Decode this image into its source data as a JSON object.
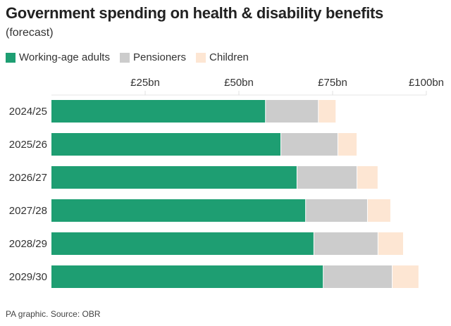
{
  "chart_data": {
    "type": "bar",
    "orientation": "horizontal",
    "stacked": true,
    "title": "Government spending on health & disability benefits",
    "subtitle": "(forecast)",
    "categories": [
      "2024/25",
      "2025/26",
      "2026/27",
      "2027/28",
      "2028/29",
      "2029/30"
    ],
    "series": [
      {
        "name": "Working-age adults",
        "color": "#1e9e72",
        "values": [
          57.0,
          61.1,
          65.4,
          67.7,
          69.9,
          72.4
        ]
      },
      {
        "name": "Pensioners",
        "color": "#cccccc",
        "values": [
          14.1,
          15.2,
          16.0,
          16.5,
          17.1,
          18.4
        ]
      },
      {
        "name": "Children",
        "color": "#fde6d3",
        "values": [
          4.7,
          5.1,
          5.6,
          6.2,
          6.8,
          7.1
        ]
      }
    ],
    "xlim": [
      0,
      100
    ],
    "x_ticks": [
      25,
      50,
      75,
      100
    ],
    "x_tick_labels": [
      "£25bn",
      "£50bn",
      "£75bn",
      "£100bn"
    ],
    "legend_position": "top-left",
    "grid": false
  },
  "footer": "PA graphic. Source: OBR"
}
